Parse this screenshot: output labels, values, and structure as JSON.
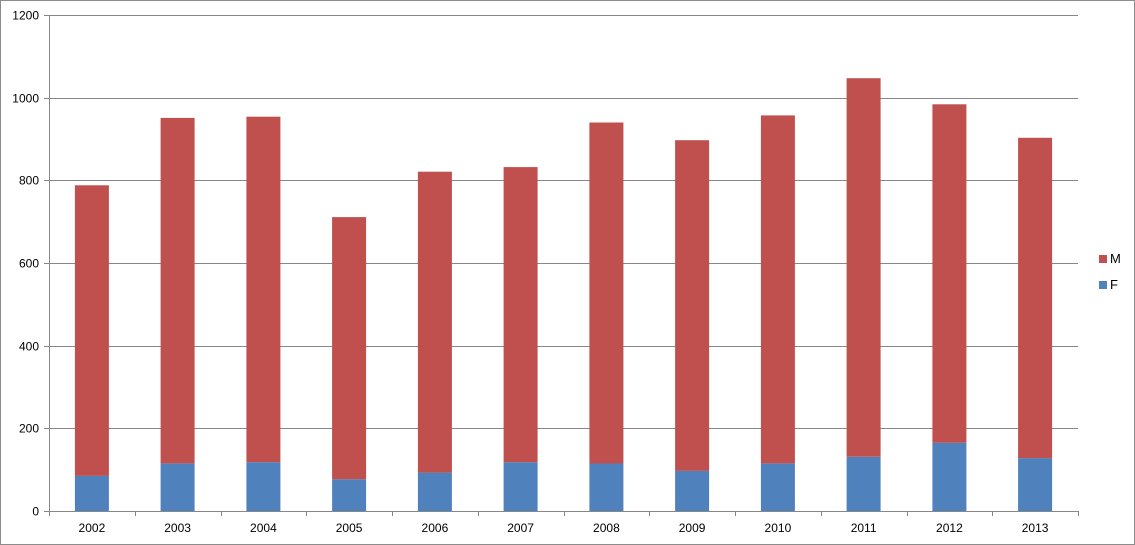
{
  "chart_data": {
    "type": "bar",
    "stacked": true,
    "categories": [
      "2002",
      "2003",
      "2004",
      "2005",
      "2006",
      "2007",
      "2008",
      "2009",
      "2010",
      "2011",
      "2012",
      "2013"
    ],
    "series": [
      {
        "name": "F",
        "color": "#4f81bd",
        "values": [
          85,
          115,
          118,
          77,
          93,
          118,
          115,
          97,
          115,
          131,
          165,
          128
        ]
      },
      {
        "name": "M",
        "color": "#c0504d",
        "values": [
          703,
          836,
          836,
          634,
          728,
          714,
          825,
          800,
          842,
          916,
          819,
          775
        ]
      }
    ],
    "ylim": [
      0,
      1200
    ],
    "yticks": [
      0,
      200,
      400,
      600,
      800,
      1000,
      1200
    ],
    "grid": true,
    "legend": {
      "position": "right",
      "order": [
        "M",
        "F"
      ]
    },
    "title": "",
    "xlabel": "",
    "ylabel": ""
  }
}
